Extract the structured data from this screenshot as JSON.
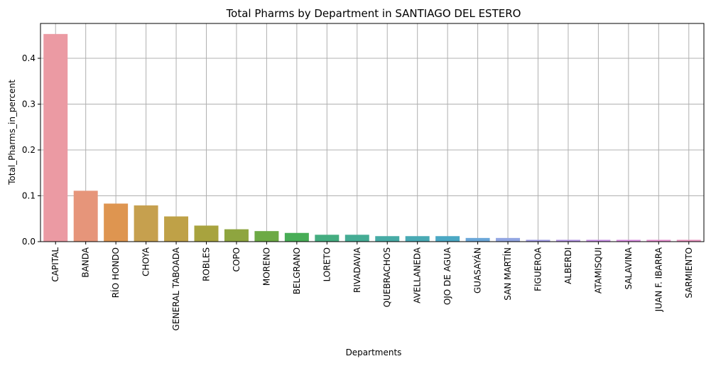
{
  "chart_data": {
    "type": "bar",
    "title": "Total Pharms by Department in SANTIAGO DEL ESTERO",
    "xlabel": "Departments",
    "ylabel": "Total_Pharms_in_percent",
    "ylim": [
      0,
      0.476
    ],
    "yticks": [
      "0.0",
      "0.1",
      "0.2",
      "0.3",
      "0.4"
    ],
    "grid": true,
    "categories": [
      "CAPITAL",
      "BANDA",
      "RÍO HONDO",
      "CHOYA",
      "GENERAL TABOADA",
      "ROBLES",
      "COPO",
      "MORENO",
      "BELGRANO",
      "LORETO",
      "RIVADAVIA",
      "QUEBRACHOS",
      "AVELLANEDA",
      "OJO DE AGUA",
      "GUASAYÁN",
      "SAN MARTÍN",
      "FIGUEROA",
      "ALBERDI",
      "ATAMISQUI",
      "SALAVINA",
      "JUAN F. IBARRA",
      "SARMIENTO"
    ],
    "values": [
      0.453,
      0.111,
      0.083,
      0.079,
      0.055,
      0.035,
      0.027,
      0.023,
      0.019,
      0.015,
      0.015,
      0.012,
      0.012,
      0.012,
      0.008,
      0.008,
      0.004,
      0.004,
      0.004,
      0.004,
      0.004,
      0.004
    ],
    "colors": [
      "#eb9aa3",
      "#e6957a",
      "#de9550",
      "#c6a04e",
      "#bfa147",
      "#a8a33e",
      "#8ea53f",
      "#6daa45",
      "#48ad56",
      "#45ad80",
      "#45ac94",
      "#47aba5",
      "#49aab4",
      "#4ba8c4",
      "#6ba7d8",
      "#92a6e2",
      "#a29ce6",
      "#b495e5",
      "#c88fe5",
      "#d98de0",
      "#e68fd0",
      "#e893bf"
    ]
  }
}
